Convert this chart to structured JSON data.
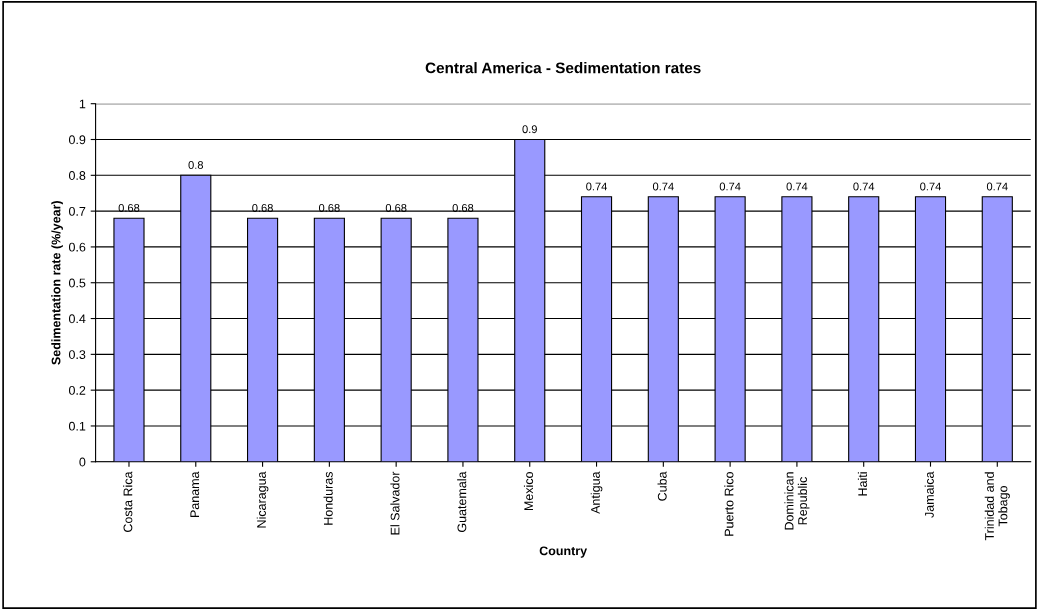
{
  "chart_data": {
    "type": "bar",
    "title": "Central America - Sedimentation rates",
    "xlabel": "Country",
    "ylabel": "Sedimentation rate (%/year)",
    "categories": [
      "Costa Rica",
      "Panama",
      "Nicaragua",
      "Honduras",
      "El Salvador",
      "Guatemala",
      "Mexico",
      "Antigua",
      "Cuba",
      "Puerto Rico",
      "Dominican\nRepublic",
      "Haiti",
      "Jamaica",
      "Trinidad and\nTobago"
    ],
    "values": [
      0.68,
      0.8,
      0.68,
      0.68,
      0.68,
      0.68,
      0.9,
      0.74,
      0.74,
      0.74,
      0.74,
      0.74,
      0.74,
      0.74
    ],
    "color": "#9999ff",
    "ylim": [
      0,
      1
    ],
    "yticks": [
      0,
      0.1,
      0.2,
      0.3,
      0.4,
      0.5,
      0.6,
      0.7,
      0.8,
      0.9,
      1
    ],
    "grid": "y",
    "data_labels": true
  }
}
